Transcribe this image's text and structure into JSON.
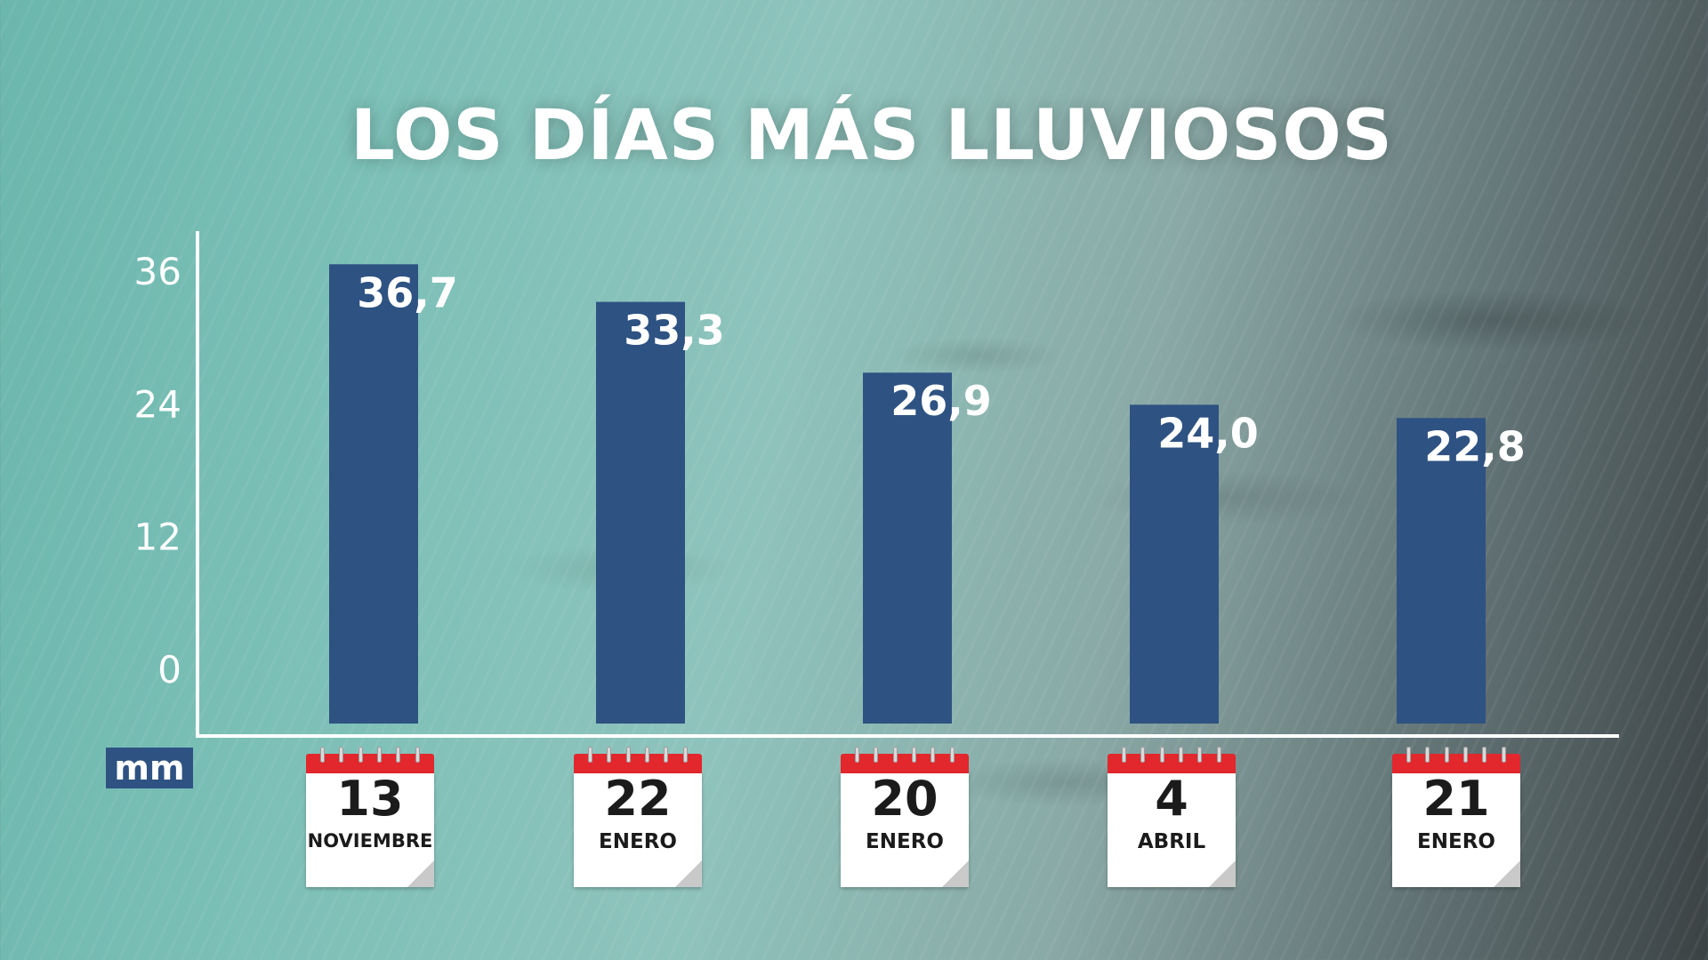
{
  "title": "LOS DÍAS MÁS LLUVIOSOS",
  "unit_label": "mm",
  "colors": {
    "bar": "#2e5282",
    "axis": "#ffffff",
    "text": "#ffffff",
    "calendar_header": "#e2272d"
  },
  "chart_data": {
    "type": "bar",
    "title": "LOS DÍAS MÁS LLUVIOSOS",
    "ylabel": "mm",
    "ylim": [
      0,
      36
    ],
    "yticks": [
      0,
      12,
      24,
      36
    ],
    "y_tick_labels": [
      "0",
      "12",
      "24",
      "36"
    ],
    "categories": [
      "13 NOVIEMBRE",
      "22 ENERO",
      "20 ENERO",
      "4 ABRIL",
      "21 ENERO"
    ],
    "values": [
      36.7,
      33.3,
      26.9,
      24.0,
      22.8
    ],
    "value_labels": [
      "36,7",
      "33,3",
      "26,9",
      "24,0",
      "22,8"
    ],
    "grid": false,
    "legend": "none"
  },
  "calendars": [
    {
      "day": "13",
      "month": "NOVIEMBRE",
      "icon": "calendar-icon"
    },
    {
      "day": "22",
      "month": "ENERO",
      "icon": "calendar-icon"
    },
    {
      "day": "20",
      "month": "ENERO",
      "icon": "calendar-icon"
    },
    {
      "day": "4",
      "month": "ABRIL",
      "icon": "calendar-icon"
    },
    {
      "day": "21",
      "month": "ENERO",
      "icon": "calendar-icon"
    }
  ]
}
